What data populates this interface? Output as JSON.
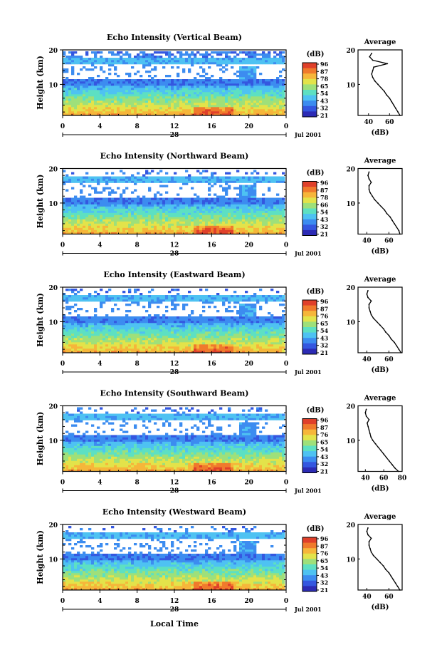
{
  "chart_data": [
    {
      "type": "heatmap",
      "title": "Echo Intensity (Vertical Beam)",
      "ylabel": "Height (km)",
      "ylim": [
        1,
        20
      ],
      "xlim": [
        0,
        24
      ],
      "x_ticks": [
        "0",
        "4",
        "8",
        "12",
        "16",
        "20",
        "0"
      ],
      "day_label": "28",
      "date_label": "Jul 2001",
      "y_ticks": [
        "10",
        "20"
      ],
      "colorbar": {
        "label": "(dB)",
        "ticks": [
          "96",
          "87",
          "78",
          "65",
          "54",
          "43",
          "32",
          "21"
        ]
      },
      "profile": {
        "title": "Average",
        "xlabel": "(dB)",
        "x_ticks": [
          "40",
          "60"
        ],
        "xlim": [
          30,
          72
        ],
        "heights": [
          1,
          2,
          3,
          4,
          5,
          6,
          7,
          8,
          9,
          10,
          11,
          12,
          13,
          14,
          15,
          16,
          17,
          18,
          19
        ],
        "values": [
          70,
          68,
          66,
          64,
          62,
          60,
          57,
          55,
          52,
          49,
          46,
          44,
          43,
          44,
          45,
          58,
          44,
          41,
          43
        ]
      }
    },
    {
      "type": "heatmap",
      "title": "Echo Intensity (Northward Beam)",
      "ylabel": "Height (km)",
      "ylim": [
        1,
        20
      ],
      "xlim": [
        0,
        24
      ],
      "x_ticks": [
        "0",
        "4",
        "8",
        "12",
        "16",
        "20",
        "0"
      ],
      "day_label": "28",
      "date_label": "Jul 2001",
      "y_ticks": [
        "10",
        "20"
      ],
      "colorbar": {
        "label": "(dB)",
        "ticks": [
          "96",
          "87",
          "78",
          "66",
          "54",
          "43",
          "32",
          "21"
        ]
      },
      "profile": {
        "title": "Average",
        "xlabel": "(dB)",
        "x_ticks": [
          "40",
          "60"
        ],
        "xlim": [
          32,
          72
        ],
        "heights": [
          1,
          2,
          3,
          4,
          5,
          6,
          7,
          8,
          9,
          10,
          11,
          12,
          13,
          14,
          15,
          16,
          17,
          18,
          19
        ],
        "values": [
          70,
          69,
          67,
          65,
          63,
          61,
          58,
          56,
          53,
          50,
          47,
          45,
          43,
          42,
          42,
          44,
          42,
          41,
          42
        ]
      }
    },
    {
      "type": "heatmap",
      "title": "Echo Intensity (Eastward Beam)",
      "ylabel": "Height (km)",
      "ylim": [
        1,
        20
      ],
      "xlim": [
        0,
        24
      ],
      "x_ticks": [
        "0",
        "4",
        "8",
        "12",
        "16",
        "20",
        "0"
      ],
      "day_label": "28",
      "date_label": "Jul 2001",
      "y_ticks": [
        "10",
        "20"
      ],
      "colorbar": {
        "label": "(dB)",
        "ticks": [
          "96",
          "87",
          "76",
          "65",
          "54",
          "43",
          "32",
          "21"
        ]
      },
      "profile": {
        "title": "Average",
        "xlabel": "(dB)",
        "x_ticks": [
          "40",
          "60"
        ],
        "xlim": [
          32,
          72
        ],
        "heights": [
          1,
          2,
          3,
          4,
          5,
          6,
          7,
          8,
          9,
          10,
          11,
          12,
          13,
          14,
          15,
          16,
          17,
          18,
          19
        ],
        "values": [
          71,
          69,
          67,
          65,
          62,
          60,
          57,
          55,
          52,
          49,
          46,
          44,
          43,
          42,
          42,
          44,
          41,
          40,
          41
        ]
      }
    },
    {
      "type": "heatmap",
      "title": "Echo Intensity (Southward Beam)",
      "ylabel": "Height (km)",
      "ylim": [
        1,
        20
      ],
      "xlim": [
        0,
        24
      ],
      "x_ticks": [
        "0",
        "4",
        "8",
        "12",
        "16",
        "20",
        "0"
      ],
      "day_label": "28",
      "date_label": "Jul 2001",
      "y_ticks": [
        "10",
        "20"
      ],
      "colorbar": {
        "label": "(dB)",
        "ticks": [
          "96",
          "87",
          "76",
          "65",
          "54",
          "43",
          "32",
          "21"
        ]
      },
      "profile": {
        "title": "Average",
        "xlabel": "(dB)",
        "x_ticks": [
          "40",
          "60",
          "80"
        ],
        "xlim": [
          32,
          80
        ],
        "heights": [
          1,
          2,
          3,
          4,
          5,
          6,
          7,
          8,
          9,
          10,
          11,
          12,
          13,
          14,
          15,
          16,
          17,
          18,
          19
        ],
        "values": [
          76,
          72,
          69,
          66,
          63,
          60,
          57,
          54,
          51,
          48,
          46,
          45,
          44,
          43,
          42,
          44,
          41,
          40,
          41
        ]
      }
    },
    {
      "type": "heatmap",
      "title": "Echo Intensity (Westward Beam)",
      "ylabel": "Height (km)",
      "ylim": [
        1,
        20
      ],
      "xlim": [
        0,
        24
      ],
      "x_ticks": [
        "0",
        "4",
        "8",
        "12",
        "16",
        "20",
        "0"
      ],
      "day_label": "28",
      "date_label": "Jul 2001",
      "y_ticks": [
        "10",
        "20"
      ],
      "colorbar": {
        "label": "(dB)",
        "ticks": [
          "96",
          "87",
          "76",
          "65",
          "54",
          "43",
          "32",
          "21"
        ]
      },
      "profile": {
        "title": "Average",
        "xlabel": "(dB)",
        "x_ticks": [
          "40",
          "60"
        ],
        "xlim": [
          32,
          72
        ],
        "heights": [
          1,
          2,
          3,
          4,
          5,
          6,
          7,
          8,
          9,
          10,
          11,
          12,
          13,
          14,
          15,
          16,
          17,
          18,
          19
        ],
        "values": [
          70,
          68,
          66,
          64,
          62,
          60,
          57,
          55,
          52,
          49,
          46,
          44,
          43,
          42,
          42,
          44,
          41,
          40,
          41
        ]
      }
    }
  ],
  "figure": {
    "xlabel": "Local Time"
  },
  "colors": {
    "scale": [
      "#2c2bb5",
      "#3457e0",
      "#3c8cf0",
      "#4ec2f2",
      "#5de0c2",
      "#9ee07a",
      "#e3e34a",
      "#f6b63a",
      "#f07a2c",
      "#e0402a"
    ]
  }
}
